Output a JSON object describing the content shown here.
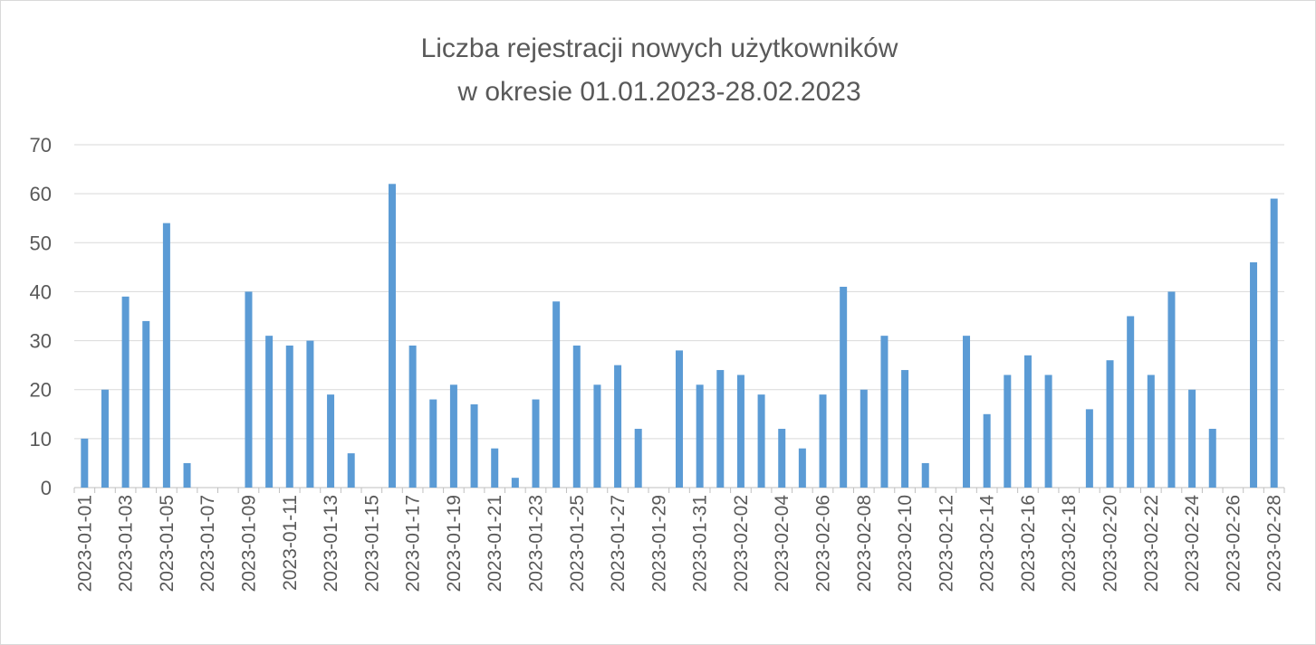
{
  "chart_data": {
    "type": "bar",
    "title": [
      "Liczba rejestracji nowych użytkowników",
      "w okresie 01.01.2023-28.02.2023"
    ],
    "xlabel": "",
    "ylabel": "",
    "ylim": [
      0,
      70
    ],
    "yticks": [
      0,
      10,
      20,
      30,
      40,
      50,
      60,
      70
    ],
    "grid": true,
    "legend": "none",
    "bar_color": "#5B9BD5",
    "categories": [
      "2023-01-01",
      "2023-01-02",
      "2023-01-03",
      "2023-01-04",
      "2023-01-05",
      "2023-01-06",
      "2023-01-07",
      "2023-01-08",
      "2023-01-09",
      "2023-01-10",
      "2023-01-11",
      "2023-01-12",
      "2023-01-13",
      "2023-01-14",
      "2023-01-15",
      "2023-01-16",
      "2023-01-17",
      "2023-01-18",
      "2023-01-19",
      "2023-01-20",
      "2023-01-21",
      "2023-01-22",
      "2023-01-23",
      "2023-01-24",
      "2023-01-25",
      "2023-01-26",
      "2023-01-27",
      "2023-01-28",
      "2023-01-29",
      "2023-01-30",
      "2023-01-31",
      "2023-02-01",
      "2023-02-02",
      "2023-02-03",
      "2023-02-04",
      "2023-02-05",
      "2023-02-06",
      "2023-02-07",
      "2023-02-08",
      "2023-02-09",
      "2023-02-10",
      "2023-02-11",
      "2023-02-12",
      "2023-02-13",
      "2023-02-14",
      "2023-02-15",
      "2023-02-16",
      "2023-02-17",
      "2023-02-18",
      "2023-02-19",
      "2023-02-20",
      "2023-02-21",
      "2023-02-22",
      "2023-02-23",
      "2023-02-24",
      "2023-02-25",
      "2023-02-26",
      "2023-02-27",
      "2023-02-28"
    ],
    "values": [
      10,
      20,
      39,
      34,
      54,
      5,
      0,
      0,
      40,
      31,
      29,
      30,
      19,
      7,
      0,
      62,
      29,
      18,
      21,
      17,
      8,
      2,
      18,
      38,
      29,
      21,
      25,
      12,
      0,
      28,
      21,
      24,
      23,
      19,
      12,
      8,
      19,
      41,
      20,
      31,
      24,
      5,
      0,
      31,
      15,
      23,
      27,
      23,
      0,
      16,
      26,
      35,
      23,
      40,
      20,
      12,
      0,
      46,
      59
    ],
    "xtick_labels_every": 2
  }
}
